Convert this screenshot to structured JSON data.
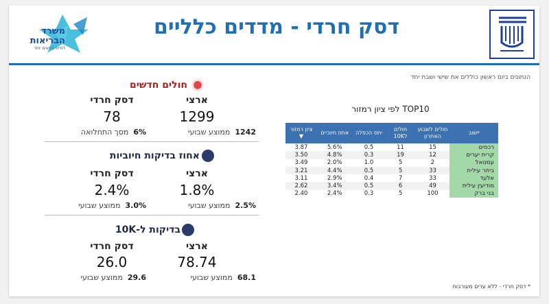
{
  "header": {
    "title": "דסק חרדי - מדדים כלליים",
    "ministry_logo_line1": "משרד",
    "ministry_logo_line2": "הבריאות",
    "ministry_logo_tagline": "לחיים בריאים יותר"
  },
  "note": "הנתונים ביום ראשון כוללים את שישי ושבת יחד",
  "sections": [
    {
      "title": "חולים חדשים",
      "icon": "virus-icon",
      "national": {
        "label": "ארצי",
        "value": "1299",
        "sub_value": "1242",
        "sub_label": "ממוצע שבועי"
      },
      "haredi": {
        "label": "דסק חרדי",
        "value": "78",
        "sub_value": "6%",
        "sub_label": "מסך התחלואה"
      }
    },
    {
      "title": "אחוז בדיקות חיוביות",
      "icon": "test-tubes-icon",
      "national": {
        "label": "ארצי",
        "value": "1.8%",
        "sub_value": "2.5%",
        "sub_label": "ממוצע שבועי"
      },
      "haredi": {
        "label": "דסק חרדי",
        "value": "2.4%",
        "sub_value": "3.0%",
        "sub_label": "ממוצע שבועי"
      }
    },
    {
      "title": "בדיקות ל-10K",
      "icon": "people-icon",
      "national": {
        "label": "ארצי",
        "value": "78.74",
        "sub_value": "68.1",
        "sub_label": "ממוצע שבועי"
      },
      "haredi": {
        "label": "דסק חרדי",
        "value": "26.0",
        "sub_value": "29.6",
        "sub_label": "ממוצע שבועי"
      }
    }
  ],
  "table": {
    "title": "TOP10 לפי ציון רמזור",
    "headers": [
      "יישוב",
      "חולים לשבוע האחרון",
      "חולים ל10K",
      "יחס הכפלה",
      "אחוז חיוביים",
      "ציון רמזור"
    ],
    "rows": [
      [
        "רכסים",
        "15",
        "11",
        "0.5",
        "5.6%",
        "3.87"
      ],
      [
        "קרית יערים",
        "12",
        "19",
        "0.3",
        "4.8%",
        "3.50"
      ],
      [
        "עמנואל",
        "2",
        "5",
        "1.0",
        "2.0%",
        "3.49"
      ],
      [
        "ביתר עילית",
        "33",
        "5",
        "0.5",
        "4.4%",
        "3.21"
      ],
      [
        "אלעד",
        "33",
        "7",
        "0.4",
        "2.9%",
        "3.11"
      ],
      [
        "מודיעין עילית",
        "49",
        "6",
        "0.5",
        "3.4%",
        "2.62"
      ],
      [
        "בני ברק",
        "100",
        "5",
        "0.3",
        "2.4%",
        "2.40"
      ]
    ]
  },
  "footer": "* דסק חרדי - ללא ערים מעורבות",
  "colors": {
    "accent": "#1f6fb5",
    "alert": "#b01b1b",
    "table_header": "#3c72b2",
    "town_cell": "#a3d8a9"
  }
}
